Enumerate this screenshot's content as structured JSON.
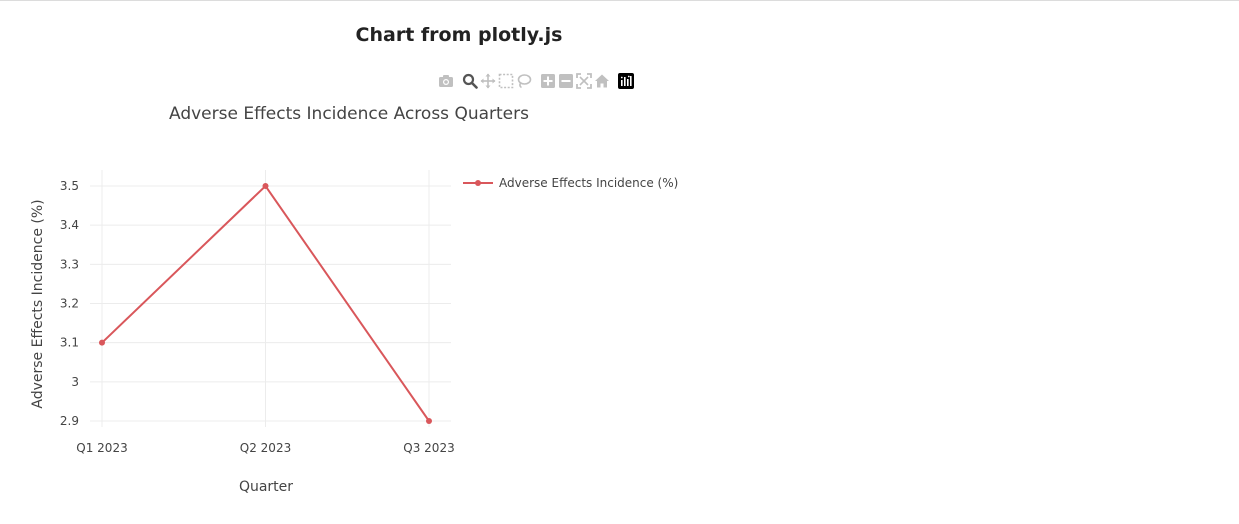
{
  "page": {
    "title": "Chart from plotly.js"
  },
  "modebar": {
    "buttons": [
      {
        "name": "camera-icon",
        "active": false
      },
      {
        "name": "zoom-icon",
        "active": true
      },
      {
        "name": "pan-icon",
        "active": false
      },
      {
        "name": "box-select-icon",
        "active": false
      },
      {
        "name": "lasso-select-icon",
        "active": false
      },
      {
        "name": "zoom-in-icon",
        "active": false
      },
      {
        "name": "zoom-out-icon",
        "active": false
      },
      {
        "name": "autoscale-icon",
        "active": false
      },
      {
        "name": "reset-axes-icon",
        "active": false
      },
      {
        "name": "plotly-logo-icon",
        "active": false
      }
    ],
    "colors": {
      "inactive": "#c0c0c0",
      "active": "#555555",
      "logo_bg": "#000000"
    }
  },
  "chart_data": {
    "type": "line",
    "title": "Adverse Effects Incidence Across Quarters",
    "xlabel": "Quarter",
    "ylabel": "Adverse Effects Incidence (%)",
    "categories": [
      "Q1 2023",
      "Q2 2023",
      "Q3 2023"
    ],
    "series": [
      {
        "name": "Adverse Effects Incidence (%)",
        "values": [
          3.1,
          3.5,
          2.9
        ],
        "color": "#d9575b"
      }
    ],
    "yticks": [
      2.9,
      3,
      3.1,
      3.2,
      3.3,
      3.4,
      3.5
    ],
    "ytick_labels": [
      "2.9",
      "3",
      "3.1",
      "3.2",
      "3.3",
      "3.4",
      "3.5"
    ],
    "ylim": [
      2.9,
      3.5
    ],
    "grid": true,
    "legend_position": "top-right"
  }
}
